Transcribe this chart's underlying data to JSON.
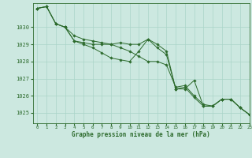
{
  "title": "Graphe pression niveau de la mer (hPa)",
  "background_color": "#cce8e0",
  "grid_color": "#aad4c8",
  "line_color": "#2d6b2d",
  "xlim": [
    -0.5,
    23
  ],
  "ylim": [
    1024.4,
    1031.4
  ],
  "yticks": [
    1025,
    1026,
    1027,
    1028,
    1029,
    1030
  ],
  "xticks": [
    0,
    1,
    2,
    3,
    4,
    5,
    6,
    7,
    8,
    9,
    10,
    11,
    12,
    13,
    14,
    15,
    16,
    17,
    18,
    19,
    20,
    21,
    22,
    23
  ],
  "hours": [
    0,
    1,
    2,
    3,
    4,
    5,
    6,
    7,
    8,
    9,
    10,
    11,
    12,
    13,
    14,
    15,
    16,
    17,
    18,
    19,
    20,
    21,
    22,
    23
  ],
  "line1": [
    1031.1,
    1031.2,
    1030.2,
    1030.0,
    1029.2,
    1029.1,
    1029.0,
    1029.0,
    1029.0,
    1029.1,
    1029.0,
    1029.0,
    1029.3,
    1029.0,
    1028.6,
    1026.4,
    1026.5,
    1025.9,
    1025.4,
    1025.4,
    1025.8,
    1025.8,
    1025.3,
    1024.9
  ],
  "line2": [
    1031.1,
    1031.2,
    1030.2,
    1030.0,
    1029.2,
    1029.0,
    1028.8,
    1028.5,
    1028.2,
    1028.1,
    1028.0,
    1028.6,
    1029.3,
    1028.8,
    1028.4,
    1026.4,
    1026.4,
    1026.9,
    1025.4,
    1025.4,
    1025.8,
    1025.8,
    1025.3,
    1024.9
  ],
  "line3": [
    1031.1,
    1031.2,
    1030.2,
    1030.0,
    1029.5,
    1029.3,
    1029.2,
    1029.1,
    1029.0,
    1028.8,
    1028.6,
    1028.3,
    1028.0,
    1028.0,
    1027.8,
    1026.5,
    1026.6,
    1026.0,
    1025.5,
    1025.4,
    1025.8,
    1025.8,
    1025.3,
    1024.9
  ]
}
